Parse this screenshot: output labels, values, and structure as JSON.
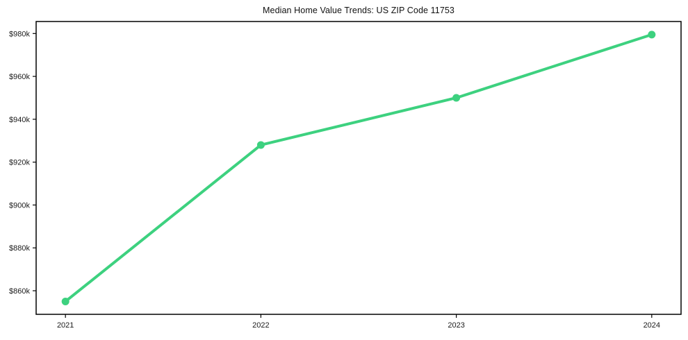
{
  "chart_data": {
    "type": "line",
    "title": "Median Home Value Trends: US ZIP Code 11753",
    "x": [
      2021,
      2022,
      2023,
      2024
    ],
    "x_tick_labels": [
      "2021",
      "2022",
      "2023",
      "2024"
    ],
    "values": [
      855000,
      928000,
      950000,
      979500
    ],
    "y_ticks": [
      860000,
      880000,
      900000,
      920000,
      940000,
      960000,
      980000
    ],
    "y_tick_labels": [
      "$860k",
      "$880k",
      "$900k",
      "$920k",
      "$940k",
      "$960k",
      "$980k"
    ],
    "xlim": [
      2020.85,
      2024.15
    ],
    "ylim": [
      849000,
      985600
    ],
    "grid": false,
    "legend": "none",
    "line_color": "#3dd17f",
    "axis_color": "#000000",
    "label_color": "#1a1a1a"
  }
}
